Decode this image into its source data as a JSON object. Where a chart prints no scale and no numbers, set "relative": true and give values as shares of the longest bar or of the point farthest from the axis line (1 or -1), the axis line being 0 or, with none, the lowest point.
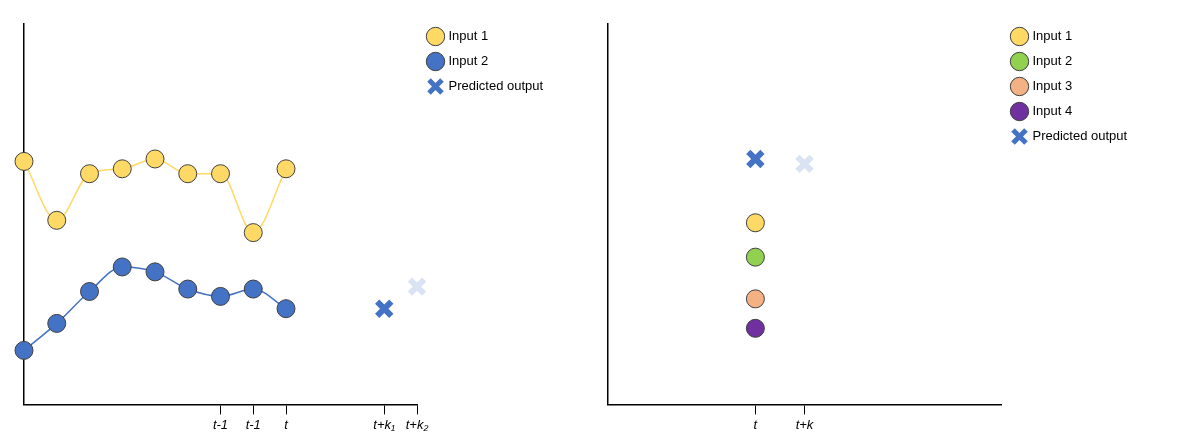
{
  "chart_data": [
    {
      "type": "line",
      "relative": true,
      "marker": "circle",
      "legend": "top right",
      "tick_labels": "x",
      "categories": [
        null,
        null,
        null,
        null,
        null,
        null,
        "t-1",
        "t-1",
        "t",
        null,
        null,
        "t+k₁",
        "t+k₂"
      ],
      "series": [
        {
          "name": "Input 1",
          "color": "#ffd966",
          "values": [
            0.99,
            0.75,
            0.94,
            0.96,
            1,
            0.94,
            0.94,
            0.7,
            0.96,
            null,
            null,
            null,
            null
          ]
        },
        {
          "name": "Input 2",
          "color": "#4472c4",
          "values": [
            0.22,
            0.33,
            0.46,
            0.56,
            0.54,
            0.47,
            0.44,
            0.47,
            0.39,
            null,
            null,
            null,
            null
          ]
        },
        {
          "name": "Predicted output",
          "type": "scatter",
          "marker": "cross",
          "color": "#4472c4",
          "colors": [
            null,
            null,
            null,
            null,
            null,
            null,
            null,
            null,
            null,
            null,
            null,
            "#4472c4",
            "#dae3f3"
          ],
          "values": [
            null,
            null,
            null,
            null,
            null,
            null,
            null,
            null,
            null,
            null,
            null,
            0.39,
            0.48
          ]
        }
      ]
    },
    {
      "type": "scatter",
      "relative": true,
      "marker": "circle",
      "legend": "top right",
      "tick_labels": "x",
      "categories": [
        null,
        null,
        null,
        "t",
        "t+k",
        null,
        null,
        null,
        null
      ],
      "series": [
        {
          "name": "Input 1",
          "color": "#ffd966",
          "values": [
            null,
            null,
            null,
            0.74,
            null,
            null,
            null,
            null,
            null
          ]
        },
        {
          "name": "Input 2",
          "color": "#92d050",
          "values": [
            null,
            null,
            null,
            0.6,
            null,
            null,
            null,
            null,
            null
          ]
        },
        {
          "name": "Input 3",
          "color": "#f4b183",
          "values": [
            null,
            null,
            null,
            0.43,
            null,
            null,
            null,
            null,
            null
          ]
        },
        {
          "name": "Input 4",
          "color": "#7030a0",
          "values": [
            null,
            null,
            null,
            0.31,
            null,
            null,
            null,
            null,
            null
          ]
        },
        {
          "name": "Predicted output",
          "marker": "cross",
          "color": "#4472c4",
          "colors": [
            null,
            null,
            null,
            "#4472c4",
            "#dae3f3",
            null,
            null,
            null,
            null
          ],
          "values": [
            null,
            null,
            null,
            1,
            0.98,
            null,
            null,
            null,
            null
          ]
        }
      ]
    }
  ]
}
